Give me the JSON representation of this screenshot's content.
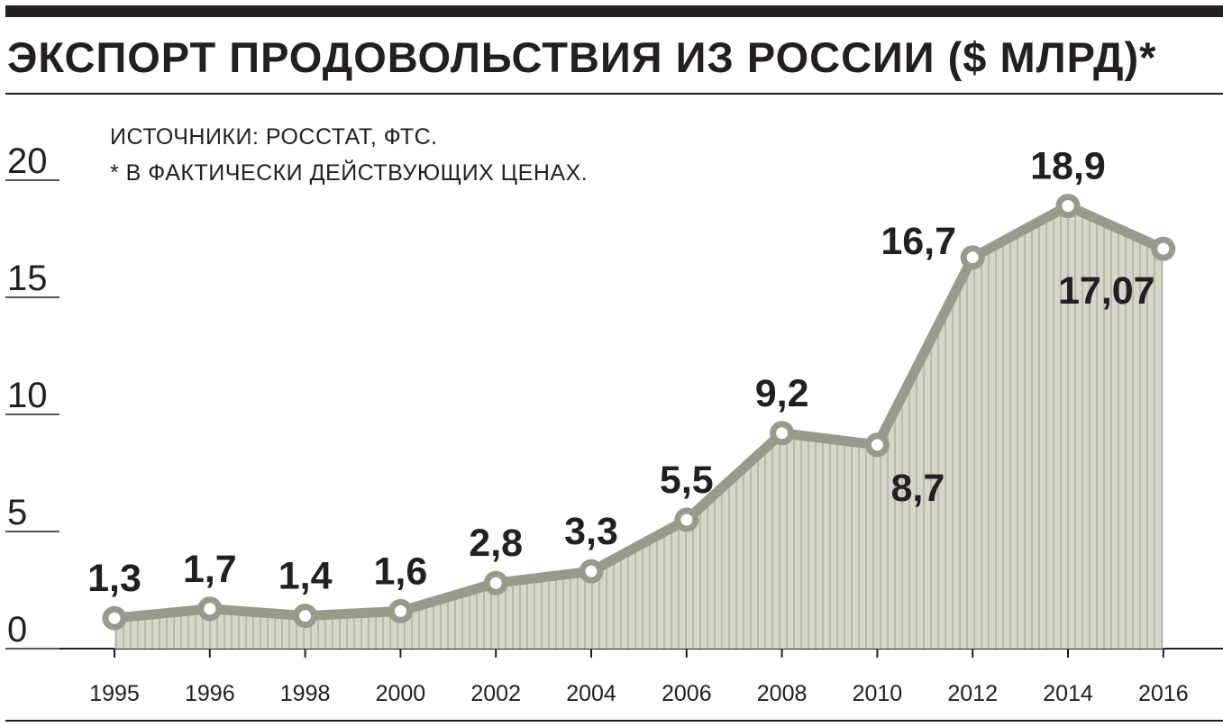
{
  "chart_data": {
    "type": "area",
    "title": "ЭКСПОРТ ПРОДОВОЛЬСТВИЯ ИЗ РОССИИ ($ МЛРД)*",
    "notes": [
      "ИСТОЧНИКИ: РОССТАТ, ФТС.",
      "* В ФАКТИЧЕСКИ ДЕЙСТВУЮЩИХ ЦЕНАХ."
    ],
    "categories": [
      "1995",
      "1996",
      "1998",
      "2000",
      "2002",
      "2004",
      "2006",
      "2008",
      "2010",
      "2012",
      "2014",
      "2016"
    ],
    "values": [
      1.3,
      1.7,
      1.4,
      1.6,
      2.8,
      3.3,
      5.5,
      9.2,
      8.7,
      16.7,
      18.9,
      17.07
    ],
    "labels": [
      "1,3",
      "1,7",
      "1,4",
      "1,6",
      "2,8",
      "3,3",
      "5,5",
      "9,2",
      "8,7",
      "16,7",
      "18,9",
      "17,07"
    ],
    "label_below": [
      false,
      false,
      false,
      false,
      false,
      false,
      false,
      false,
      true,
      false,
      false,
      true
    ],
    "yticks": [
      0,
      5,
      10,
      15,
      20
    ],
    "ylim": [
      0,
      20
    ],
    "xlabel": "",
    "ylabel": "",
    "colors": {
      "line": "#979b8a",
      "fill": "#d6d6cb",
      "hatch": "#b9baac",
      "text": "#231f20"
    }
  }
}
